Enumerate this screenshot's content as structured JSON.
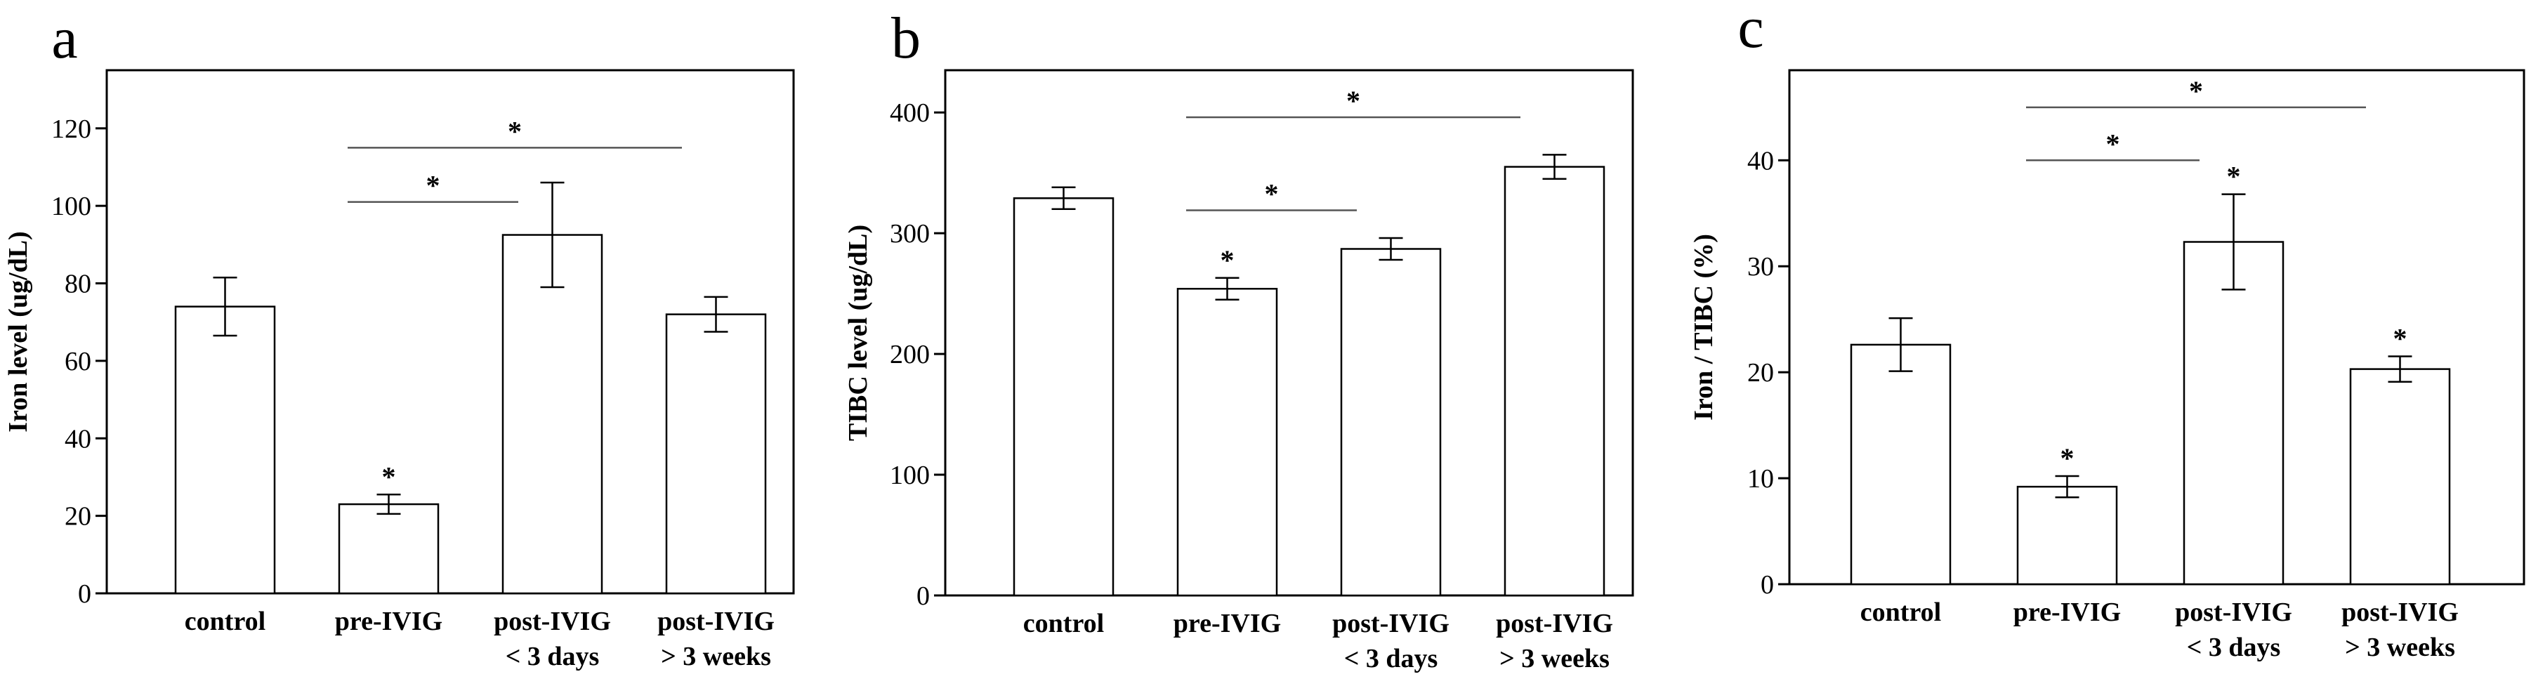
{
  "chart_data": [
    {
      "type": "bar",
      "panel": "a",
      "ylabel": "Iron level (ug/dL)",
      "ylim": [
        0,
        135
      ],
      "yticks": [
        0,
        20,
        40,
        60,
        80,
        100,
        120
      ],
      "categories": [
        [
          "control"
        ],
        [
          "pre-IVIG"
        ],
        [
          "post-IVIG",
          "< 3 days"
        ],
        [
          "post-IVIG",
          "> 3 weeks"
        ]
      ],
      "values": [
        74,
        23,
        92.5,
        72
      ],
      "errors": [
        7.5,
        2.5,
        13.5,
        4.5
      ],
      "bar_stars": [
        false,
        true,
        false,
        false
      ],
      "comparisons": [
        {
          "from": 1,
          "to": 2,
          "y": 101,
          "label": "*"
        },
        {
          "from": 1,
          "to": 3,
          "y": 115,
          "label": "*"
        }
      ]
    },
    {
      "type": "bar",
      "panel": "b",
      "ylabel": "TIBC level (ug/dL)",
      "ylim": [
        0,
        435
      ],
      "yticks": [
        0,
        100,
        200,
        300,
        400
      ],
      "categories": [
        [
          "control"
        ],
        [
          "pre-IVIG"
        ],
        [
          "post-IVIG",
          "< 3 days"
        ],
        [
          "post-IVIG",
          "> 3 weeks"
        ]
      ],
      "values": [
        329,
        254,
        287,
        355
      ],
      "errors": [
        9,
        9,
        9,
        10
      ],
      "bar_stars": [
        false,
        true,
        false,
        false
      ],
      "comparisons": [
        {
          "from": 1,
          "to": 2,
          "y": 319,
          "label": "*"
        },
        {
          "from": 1,
          "to": 3,
          "y": 396,
          "label": "*"
        }
      ]
    },
    {
      "type": "bar",
      "panel": "c",
      "ylabel": "Iron / TIBC (%)",
      "ylim": [
        0,
        48.5
      ],
      "yticks": [
        0,
        10,
        20,
        30,
        40
      ],
      "categories": [
        [
          "control"
        ],
        [
          "pre-IVIG"
        ],
        [
          "post-IVIG",
          "< 3 days"
        ],
        [
          "post-IVIG",
          "> 3 weeks"
        ]
      ],
      "values": [
        22.6,
        9.2,
        32.3,
        20.3
      ],
      "errors": [
        2.5,
        1.0,
        4.5,
        1.2
      ],
      "bar_stars": [
        false,
        true,
        true,
        true
      ],
      "comparisons": [
        {
          "from": 1,
          "to": 2,
          "y": 40,
          "label": "*"
        },
        {
          "from": 1,
          "to": 3,
          "y": 45,
          "label": "*"
        }
      ]
    }
  ]
}
